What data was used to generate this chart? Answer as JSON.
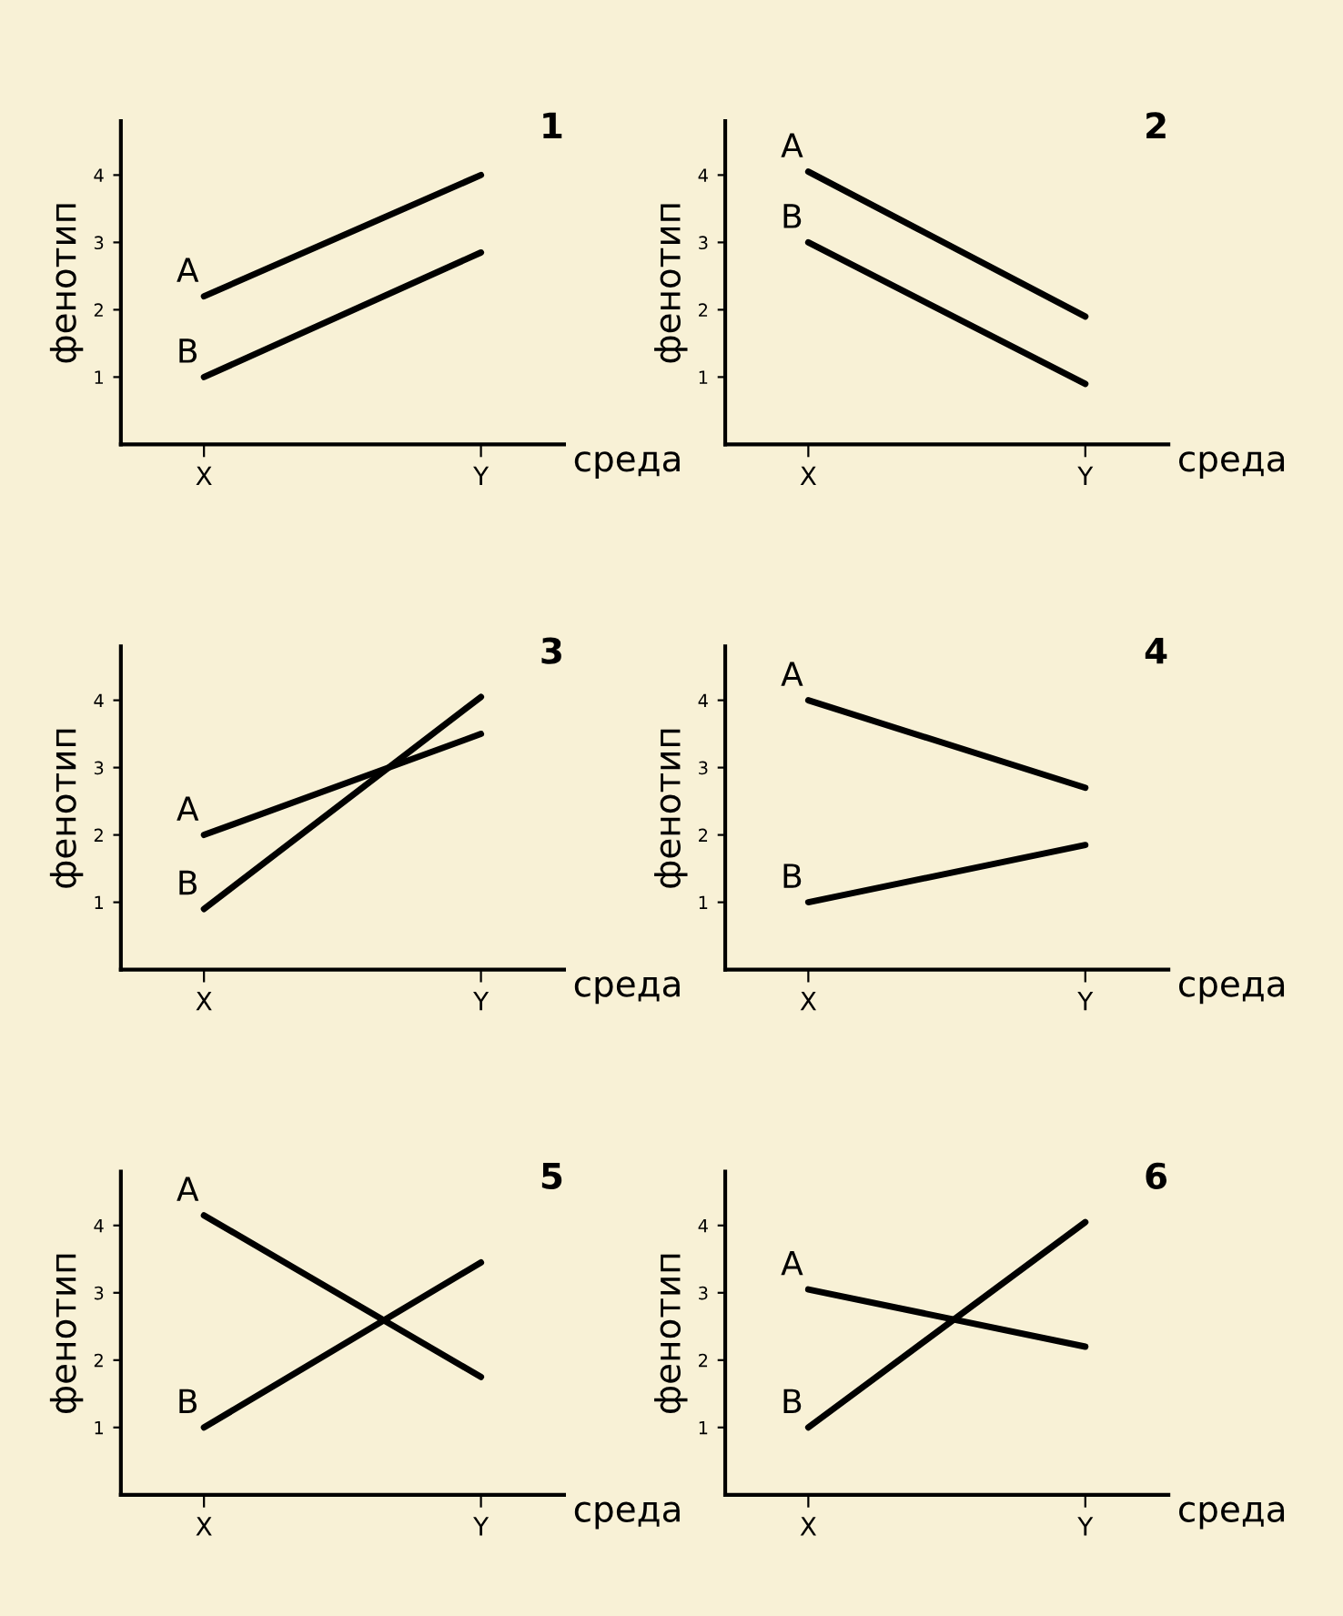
{
  "chart_data": [
    {
      "type": "line",
      "title": "1",
      "xlabel": "среда",
      "ylabel": "фенотип",
      "categories": [
        "X",
        "Y"
      ],
      "ylim": [
        0,
        4.8
      ],
      "yticks": [
        1,
        2,
        3,
        4
      ],
      "series": [
        {
          "name": "A",
          "color": "#000000",
          "values": [
            2.2,
            4.0
          ]
        },
        {
          "name": "B",
          "color": "#000000",
          "values": [
            1.0,
            2.85
          ]
        }
      ]
    },
    {
      "type": "line",
      "title": "2",
      "xlabel": "среда",
      "ylabel": "фенотип",
      "categories": [
        "X",
        "Y"
      ],
      "ylim": [
        0,
        4.8
      ],
      "yticks": [
        1,
        2,
        3,
        4
      ],
      "series": [
        {
          "name": "A",
          "color": "#000000",
          "values": [
            4.05,
            1.9
          ]
        },
        {
          "name": "B",
          "color": "#000000",
          "values": [
            3.0,
            0.9
          ]
        }
      ]
    },
    {
      "type": "line",
      "title": "3",
      "xlabel": "среда",
      "ylabel": "фенотип",
      "categories": [
        "X",
        "Y"
      ],
      "ylim": [
        0,
        4.8
      ],
      "yticks": [
        1,
        2,
        3,
        4
      ],
      "series": [
        {
          "name": "A",
          "color": "#000000",
          "values": [
            2.0,
            3.5
          ]
        },
        {
          "name": "B",
          "color": "#000000",
          "values": [
            0.9,
            4.05
          ]
        }
      ]
    },
    {
      "type": "line",
      "title": "4",
      "xlabel": "среда",
      "ylabel": "фенотип",
      "categories": [
        "X",
        "Y"
      ],
      "ylim": [
        0,
        4.8
      ],
      "yticks": [
        1,
        2,
        3,
        4
      ],
      "series": [
        {
          "name": "A",
          "color": "#000000",
          "values": [
            4.0,
            2.7
          ]
        },
        {
          "name": "B",
          "color": "#000000",
          "values": [
            1.0,
            1.85
          ]
        }
      ]
    },
    {
      "type": "line",
      "title": "5",
      "xlabel": "среда",
      "ylabel": "фенотип",
      "categories": [
        "X",
        "Y"
      ],
      "ylim": [
        0,
        4.8
      ],
      "yticks": [
        1,
        2,
        3,
        4
      ],
      "series": [
        {
          "name": "A",
          "color": "#000000",
          "values": [
            4.15,
            1.75
          ]
        },
        {
          "name": "B",
          "color": "#000000",
          "values": [
            1.0,
            3.45
          ]
        }
      ]
    },
    {
      "type": "line",
      "title": "6",
      "xlabel": "среда",
      "ylabel": "фенотип",
      "categories": [
        "X",
        "Y"
      ],
      "ylim": [
        0,
        4.8
      ],
      "yticks": [
        1,
        2,
        3,
        4
      ],
      "series": [
        {
          "name": "A",
          "color": "#000000",
          "values": [
            3.05,
            2.2
          ]
        },
        {
          "name": "B",
          "color": "#000000",
          "values": [
            1.0,
            4.05
          ]
        }
      ]
    }
  ]
}
